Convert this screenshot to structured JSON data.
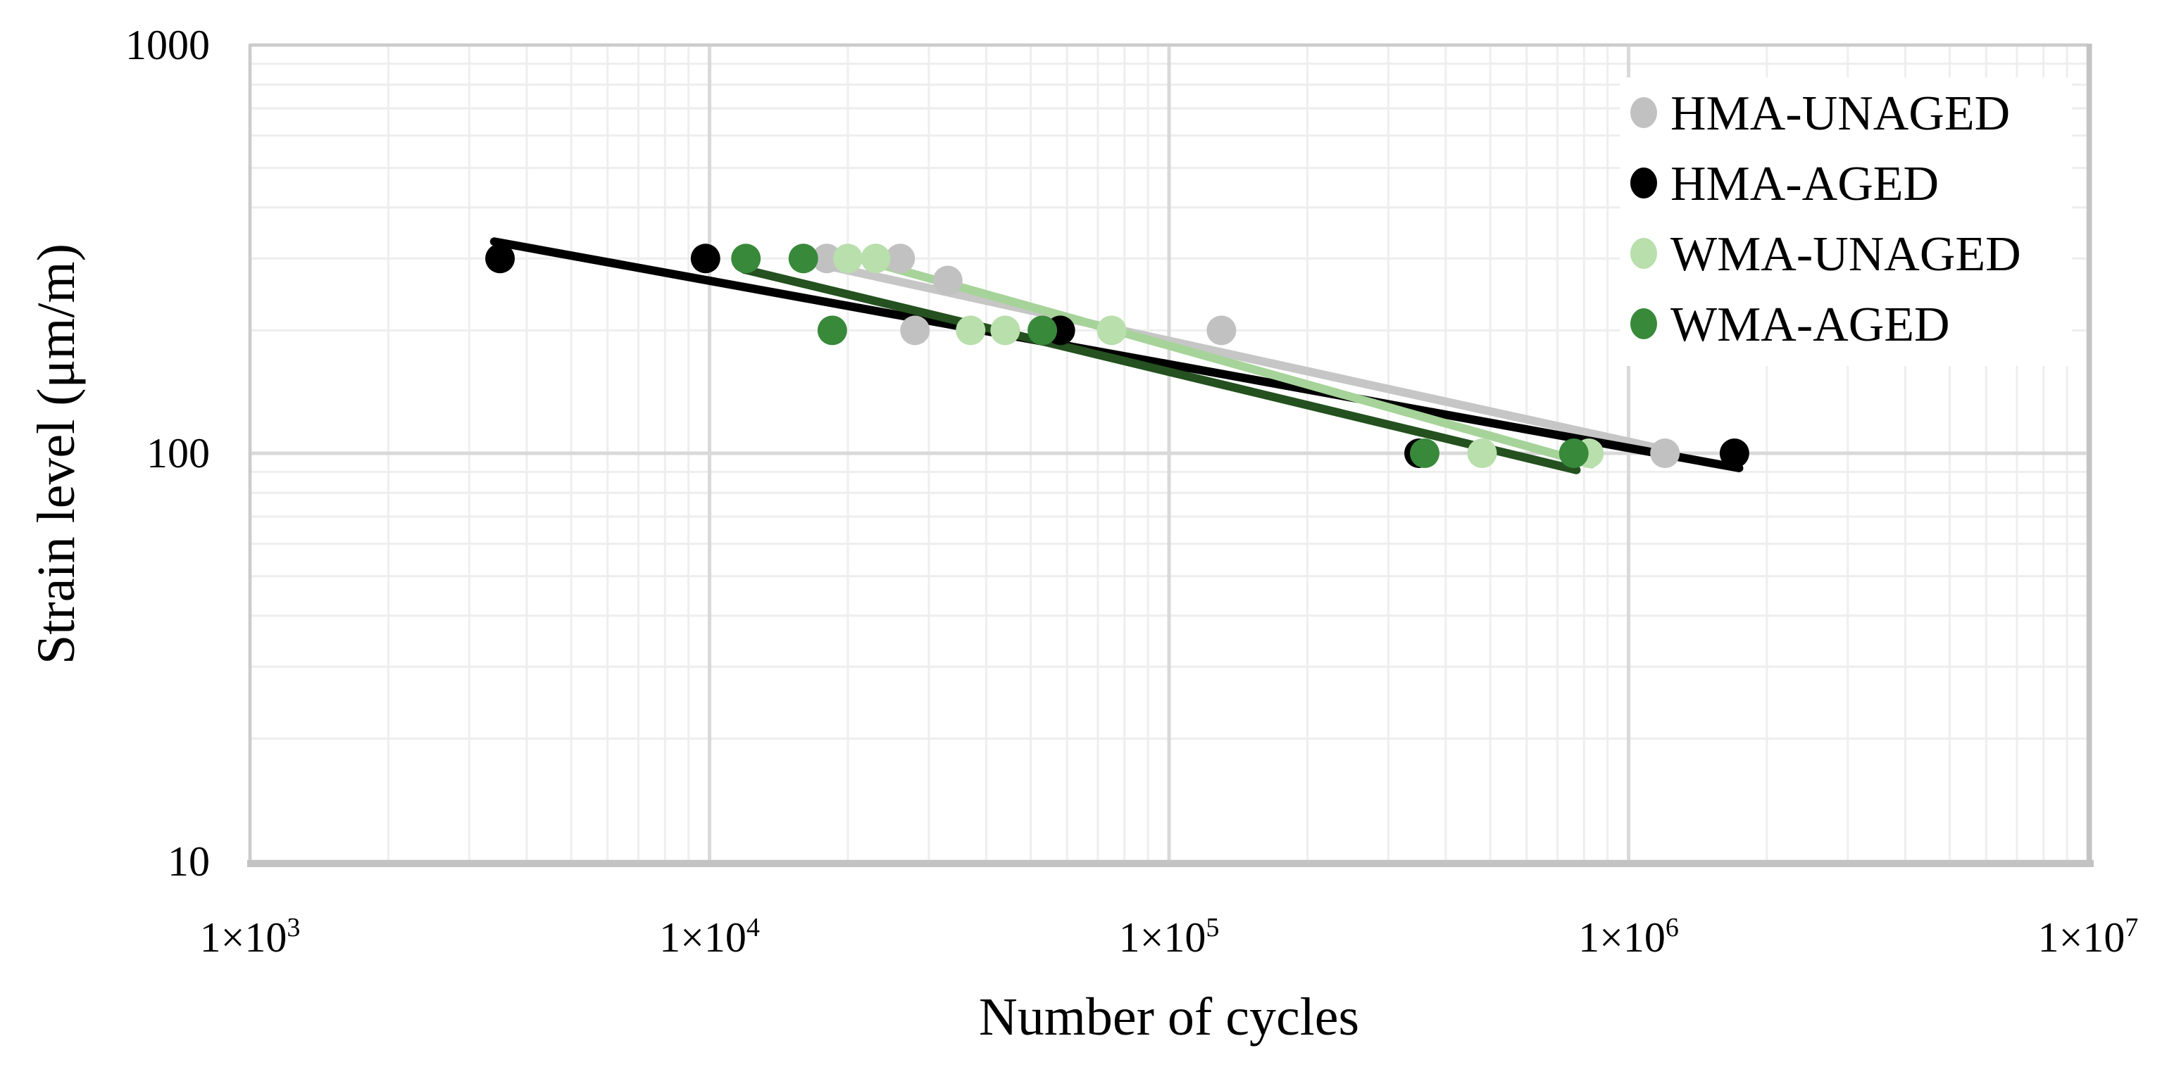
{
  "figure": {
    "background": "#ffffff",
    "text_color": "#000000"
  },
  "style": {
    "grid_minor_color": "#eeeeee",
    "grid_major_color": "#d9d9d9",
    "border_color": "#cccccc",
    "axis_line_color": "#c3c3c3",
    "legend_background": "#ffffff"
  },
  "axes": {
    "x": {
      "title": "Number of cycles",
      "scale": "log",
      "tick_prefix": "1×10",
      "tick_exponents": [
        3,
        4,
        5,
        6,
        7
      ]
    },
    "y": {
      "title": "Strain level (μm/m)",
      "scale": "log",
      "ticks": [
        {
          "label": "1000",
          "value": 1000
        },
        {
          "label": "100",
          "value": 100
        },
        {
          "label": "10",
          "value": 10
        }
      ]
    }
  },
  "chart_data": {
    "type": "scatter",
    "title": "",
    "xlabel": "Number of cycles",
    "ylabel": "Strain level (μm/m)",
    "xscale": "log",
    "yscale": "log",
    "xlim": [
      1000,
      10000000
    ],
    "ylim": [
      10,
      1000
    ],
    "grid": "on",
    "legend_position": "top-right-inside",
    "series": [
      {
        "name": "HMA-UNAGED",
        "marker_color": "#c1c1c1",
        "line_color": "#c6c6c6",
        "points": [
          [
            18000,
            300
          ],
          [
            26000,
            300
          ],
          [
            33000,
            265
          ],
          [
            28000,
            200
          ],
          [
            130000,
            200
          ],
          [
            1200000,
            100
          ]
        ],
        "trendline": [
          [
            17500,
            290
          ],
          [
            1250000,
            101
          ]
        ]
      },
      {
        "name": "HMA-AGED",
        "marker_color": "#000000",
        "line_color": "#000000",
        "points": [
          [
            3500,
            300
          ],
          [
            9800,
            300
          ],
          [
            58000,
            200
          ],
          [
            350000,
            100
          ],
          [
            1700000,
            100
          ]
        ],
        "trendline": [
          [
            3400,
            330
          ],
          [
            1740000,
            92
          ]
        ]
      },
      {
        "name": "WMA-UNAGED",
        "marker_color": "#b8dfac",
        "line_color": "#a6d399",
        "points": [
          [
            20000,
            300
          ],
          [
            23000,
            300
          ],
          [
            37000,
            200
          ],
          [
            44000,
            200
          ],
          [
            75000,
            200
          ],
          [
            480000,
            100
          ],
          [
            820000,
            100
          ]
        ],
        "trendline": [
          [
            23000,
            292
          ],
          [
            830000,
            94
          ]
        ]
      },
      {
        "name": "WMA-AGED",
        "marker_color": "#38893a",
        "line_color": "#24511f",
        "points": [
          [
            12000,
            300
          ],
          [
            16000,
            300
          ],
          [
            18500,
            200
          ],
          [
            53000,
            200
          ],
          [
            360000,
            100
          ],
          [
            760000,
            100
          ]
        ],
        "trendline": [
          [
            11900,
            282
          ],
          [
            770000,
            91
          ]
        ]
      }
    ]
  }
}
